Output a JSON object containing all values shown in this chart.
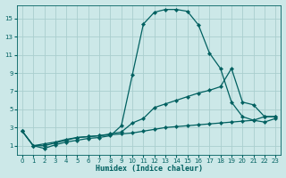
{
  "xlabel": "Humidex (Indice chaleur)",
  "bg_color": "#cce8e8",
  "grid_color": "#aacece",
  "line_color": "#006060",
  "xlim": [
    -0.5,
    23.5
  ],
  "ylim": [
    0,
    16.5
  ],
  "xticks": [
    0,
    1,
    2,
    3,
    4,
    5,
    6,
    7,
    8,
    9,
    10,
    11,
    12,
    13,
    14,
    15,
    16,
    17,
    18,
    19,
    20,
    21,
    22,
    23
  ],
  "yticks": [
    1,
    3,
    5,
    7,
    9,
    11,
    13,
    15
  ],
  "line1_x": [
    0,
    1,
    2,
    3,
    4,
    5,
    6,
    7,
    8,
    9,
    10,
    11,
    12,
    13,
    14,
    15,
    16,
    17,
    18,
    19,
    20,
    21,
    22,
    23
  ],
  "line1_y": [
    2.6,
    1.0,
    0.7,
    1.1,
    1.4,
    1.6,
    1.8,
    1.9,
    2.1,
    3.2,
    8.8,
    14.4,
    15.7,
    16.0,
    16.0,
    15.8,
    14.3,
    11.2,
    9.5,
    5.8,
    4.2,
    3.8,
    4.2,
    4.2
  ],
  "line2_x": [
    0,
    1,
    2,
    3,
    4,
    5,
    6,
    7,
    8,
    9,
    10,
    11,
    12,
    13,
    14,
    15,
    16,
    17,
    18,
    19,
    20,
    21,
    22,
    23
  ],
  "line2_y": [
    2.6,
    1.0,
    1.0,
    1.3,
    1.6,
    1.9,
    2.0,
    2.1,
    2.3,
    2.5,
    3.5,
    4.0,
    5.2,
    5.6,
    6.0,
    6.4,
    6.8,
    7.1,
    7.5,
    9.5,
    5.8,
    5.5,
    4.2,
    4.2
  ],
  "line3_x": [
    0,
    1,
    2,
    3,
    4,
    5,
    6,
    7,
    8,
    9,
    10,
    11,
    12,
    13,
    14,
    15,
    16,
    17,
    18,
    19,
    20,
    21,
    22,
    23
  ],
  "line3_y": [
    2.6,
    1.0,
    1.2,
    1.4,
    1.7,
    1.9,
    2.0,
    2.1,
    2.2,
    2.3,
    2.4,
    2.6,
    2.8,
    3.0,
    3.1,
    3.2,
    3.3,
    3.4,
    3.5,
    3.6,
    3.7,
    3.8,
    3.6,
    4.0
  ]
}
